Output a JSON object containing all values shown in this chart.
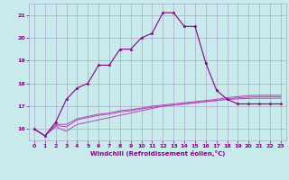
{
  "xlabel": "Windchill (Refroidissement éolien,°C)",
  "xlim": [
    -0.5,
    23.5
  ],
  "ylim": [
    15.5,
    21.5
  ],
  "yticks": [
    16,
    17,
    18,
    19,
    20,
    21
  ],
  "xticks": [
    0,
    1,
    2,
    3,
    4,
    5,
    6,
    7,
    8,
    9,
    10,
    11,
    12,
    13,
    14,
    15,
    16,
    17,
    18,
    19,
    20,
    21,
    22,
    23
  ],
  "background_color": "#c8eaea",
  "grid_color": "#aaaacc",
  "line_color": "#880088",
  "line_color2": "#bb44bb",
  "x_main": [
    0,
    1,
    2,
    3,
    4,
    5,
    6,
    7,
    8,
    9,
    10,
    11,
    12,
    13,
    14,
    15,
    16,
    17,
    18,
    19,
    20,
    21,
    22,
    23
  ],
  "y_main": [
    16,
    15.7,
    16.3,
    17.3,
    17.8,
    18.0,
    18.8,
    18.8,
    19.5,
    19.5,
    20.0,
    20.2,
    21.1,
    21.1,
    20.5,
    20.5,
    18.9,
    17.7,
    17.3,
    17.1,
    17.1,
    17.1,
    17.1,
    17.1
  ],
  "x_low": [
    0,
    1,
    2,
    3,
    4,
    5,
    6,
    7,
    8,
    9,
    10,
    11,
    12,
    13,
    14,
    15,
    16,
    17,
    18,
    19,
    20,
    21,
    22,
    23
  ],
  "y_low": [
    16,
    15.7,
    16.1,
    15.9,
    16.2,
    16.3,
    16.4,
    16.5,
    16.6,
    16.7,
    16.8,
    16.9,
    17.0,
    17.05,
    17.1,
    17.15,
    17.2,
    17.25,
    17.3,
    17.32,
    17.34,
    17.35,
    17.35,
    17.35
  ],
  "x_mid1": [
    0,
    1,
    2,
    3,
    4,
    5,
    6,
    7,
    8,
    9,
    10,
    11,
    12,
    13,
    14,
    15,
    16,
    17,
    18,
    19,
    20,
    21,
    22,
    23
  ],
  "y_mid1": [
    16,
    15.7,
    16.15,
    16.1,
    16.4,
    16.5,
    16.6,
    16.65,
    16.75,
    16.8,
    16.88,
    16.95,
    17.0,
    17.05,
    17.1,
    17.15,
    17.2,
    17.25,
    17.3,
    17.37,
    17.4,
    17.42,
    17.42,
    17.42
  ],
  "x_mid2": [
    0,
    1,
    2,
    3,
    4,
    5,
    6,
    7,
    8,
    9,
    10,
    11,
    12,
    13,
    14,
    15,
    16,
    17,
    18,
    19,
    20,
    21,
    22,
    23
  ],
  "y_mid2": [
    16,
    15.7,
    16.2,
    16.2,
    16.45,
    16.55,
    16.65,
    16.7,
    16.8,
    16.85,
    16.92,
    17.0,
    17.05,
    17.1,
    17.15,
    17.2,
    17.25,
    17.3,
    17.38,
    17.42,
    17.47,
    17.48,
    17.48,
    17.48
  ]
}
